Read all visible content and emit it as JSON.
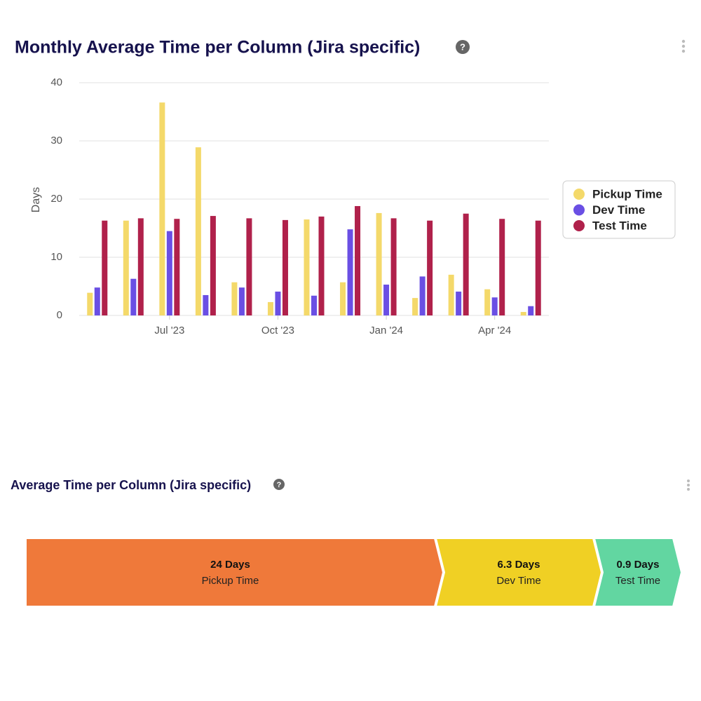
{
  "chart_data": [
    {
      "type": "bar",
      "title": "Monthly Average Time per Column (Jira specific)",
      "ylabel": "Days",
      "categories": [
        null,
        null,
        "Jul '23",
        null,
        null,
        "Oct '23",
        null,
        null,
        "Jan '24",
        null,
        null,
        "Apr '24",
        null
      ],
      "series": [
        {
          "name": "Pickup Time",
          "color": "#f4d96a",
          "values": [
            3.9,
            16.3,
            36.6,
            28.9,
            5.7,
            2.3,
            16.5,
            5.7,
            17.6,
            3.0,
            7.0,
            4.5,
            0.6
          ]
        },
        {
          "name": "Dev Time",
          "color": "#6a4fe4",
          "values": [
            4.8,
            6.3,
            14.5,
            3.5,
            4.8,
            4.1,
            3.4,
            14.8,
            5.3,
            6.7,
            4.1,
            3.1,
            1.6
          ]
        },
        {
          "name": "Test Time",
          "color": "#b0214b",
          "values": [
            16.3,
            16.7,
            16.6,
            17.1,
            16.7,
            16.4,
            17.0,
            18.8,
            16.7,
            16.3,
            17.5,
            16.6,
            16.3
          ]
        }
      ],
      "ylim": [
        0,
        40
      ],
      "yticks": [
        0,
        10,
        20,
        30,
        40
      ],
      "grid": true,
      "legend": "right"
    },
    {
      "type": "chevron",
      "title": "Average Time per Column (Jira specific)",
      "categories": [
        "Pickup Time",
        "Dev Time",
        "Test Time"
      ],
      "values": [
        24,
        6.3,
        0.9
      ],
      "value_labels": [
        "24 Days",
        "6.3 Days",
        "0.9 Days"
      ],
      "colors": [
        "#ef793a",
        "#f0d024",
        "#62d6a1"
      ]
    }
  ]
}
